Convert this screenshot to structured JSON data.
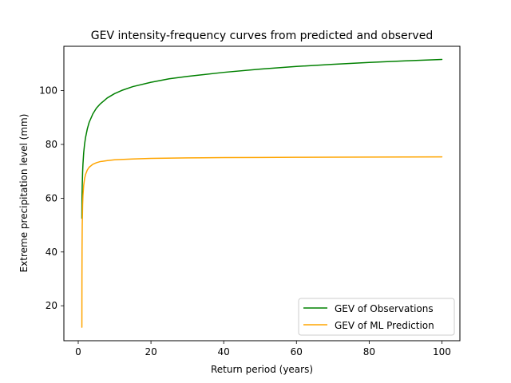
{
  "chart_data": {
    "type": "line",
    "title": "GEV intensity-frequency curves from predicted and observed",
    "xlabel": "Return period (years)",
    "ylabel": "Extreme precipitation level (mm)",
    "xlim": [
      -3.95,
      104.95
    ],
    "ylim": [
      7.0,
      116.5
    ],
    "xticks": [
      0,
      20,
      40,
      60,
      80,
      100
    ],
    "yticks": [
      20,
      40,
      60,
      80,
      100
    ],
    "grid": false,
    "legend_position": "lower-right",
    "series": [
      {
        "name": "GEV of Observations",
        "color": "#008000",
        "x": [
          1.0,
          1.05,
          1.1,
          1.2,
          1.3,
          1.5,
          1.75,
          2,
          2.5,
          3,
          4,
          5,
          6,
          8,
          10,
          12,
          15,
          20,
          25,
          30,
          40,
          50,
          60,
          70,
          80,
          90,
          100
        ],
        "y": [
          52.5,
          61.0,
          64.6,
          69.6,
          72.7,
          76.9,
          80.2,
          82.5,
          85.8,
          88.2,
          91.3,
          93.5,
          95.0,
          97.3,
          98.9,
          100.1,
          101.5,
          103.1,
          104.4,
          105.3,
          106.8,
          108.0,
          109.0,
          109.8,
          110.5,
          111.1,
          111.6
        ]
      },
      {
        "name": "GEV of ML Prediction",
        "color": "#ffa500",
        "x": [
          1.0,
          1.02,
          1.05,
          1.1,
          1.2,
          1.3,
          1.5,
          1.75,
          2,
          2.5,
          3,
          4,
          5,
          6,
          8,
          10,
          15,
          20,
          30,
          40,
          50,
          60,
          70,
          80,
          90,
          100
        ],
        "y": [
          12.0,
          30.0,
          41.0,
          50.0,
          57.5,
          61.0,
          64.8,
          67.3,
          68.8,
          70.5,
          71.5,
          72.6,
          73.2,
          73.6,
          74.0,
          74.3,
          74.6,
          74.8,
          75.0,
          75.1,
          75.15,
          75.2,
          75.25,
          75.3,
          75.33,
          75.35
        ]
      }
    ]
  }
}
